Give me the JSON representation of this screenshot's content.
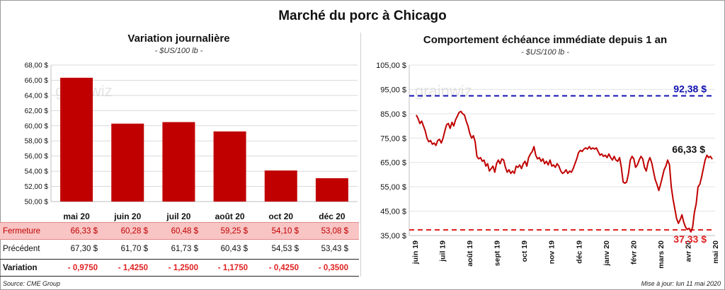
{
  "main_title": "Marché du porc à Chicago",
  "watermark": "grainwiz",
  "left": {
    "title": "Variation  journalière",
    "units": "- $US/100 lb -"
  },
  "right": {
    "title": "Comportement  échéance immédiate depuis 1 an",
    "units": "- $US/100 lb -"
  },
  "table": {
    "row_close_label": "Fermeture",
    "row_prev_label": "Précédent",
    "row_var_label": "Variation",
    "close": [
      "66,33  $",
      "60,28  $",
      "60,48  $",
      "59,25  $",
      "54,10  $",
      "53,08  $"
    ],
    "prev": [
      "67,30  $",
      "61,70  $",
      "61,73  $",
      "60,43  $",
      "54,53  $",
      "53,43  $"
    ],
    "var": [
      "- 0,9750",
      "- 1,4250",
      "- 1,2500",
      "- 1,1750",
      "- 0,4250",
      "- 0,3500"
    ]
  },
  "source": "Source: CME Group",
  "update": "Mise à jour: lun 11 mai 2020",
  "colors": {
    "bar": "#c00000",
    "line": "#c00000",
    "max_line": "#1010b0",
    "min_line": "#e02020",
    "close_bg": "#f9c4c4"
  },
  "chart_data": [
    {
      "type": "bar",
      "title": "Variation  journalière",
      "subtitle": "- $US/100 lb -",
      "categories": [
        "mai 20",
        "juin 20",
        "juil 20",
        "août 20",
        "oct 20",
        "déc 20"
      ],
      "values": [
        66.33,
        60.28,
        60.48,
        59.25,
        54.1,
        53.08
      ],
      "ylim": [
        50,
        68
      ],
      "yticks": [
        "50,00 $",
        "52,00 $",
        "54,00 $",
        "56,00 $",
        "58,00 $",
        "60,00 $",
        "62,00 $",
        "64,00 $",
        "66,00 $",
        "68,00 $"
      ],
      "grid": true,
      "legend": "none"
    },
    {
      "type": "line",
      "title": "Comportement  échéance immédiate depuis 1 an",
      "subtitle": "- $US/100 lb -",
      "x_start": "2019-05-13",
      "x_end": "2020-05-11",
      "xticks": [
        "juin 19",
        "juil 19",
        "août 19",
        "sept 19",
        "oct 19",
        "nov 19",
        "déc 19",
        "janv 20",
        "févr 20",
        "mars 20",
        "avr 20",
        "mai 20"
      ],
      "ylim": [
        35,
        105
      ],
      "yticks": [
        "35,00 $",
        "45,00 $",
        "55,00 $",
        "65,00 $",
        "75,00 $",
        "85,00 $",
        "95,00 $",
        "105,00 $"
      ],
      "grid": true,
      "series": [
        {
          "values": [
            84.5,
            83.0,
            81.0,
            82.0,
            80.0,
            78.0,
            75.0,
            73.5,
            74.0,
            72.5,
            73.0,
            72.0,
            74.0,
            74.5,
            73.0,
            75.0,
            78.0,
            80.5,
            81.0,
            79.0,
            81.5,
            80.0,
            82.5,
            84.0,
            85.5,
            86.0,
            85.0,
            84.5,
            82.0,
            80.0,
            77.0,
            75.0,
            76.0,
            73.5,
            67.5,
            66.5,
            67.0,
            65.5,
            66.0,
            63.5,
            64.5,
            61.5,
            62.5,
            63.5,
            61.0,
            64.5,
            66.0,
            64.5,
            66.5,
            66.0,
            63.0,
            61.0,
            62.0,
            60.5,
            61.5,
            60.5,
            63.5,
            63.0,
            64.0,
            62.5,
            64.5,
            65.5,
            63.5,
            67.0,
            68.5,
            69.5,
            71.5,
            68.0,
            66.5,
            67.0,
            65.5,
            66.5,
            64.5,
            65.5,
            64.0,
            66.0,
            63.5,
            64.0,
            63.0,
            64.5,
            63.5,
            61.5,
            60.5,
            61.0,
            62.0,
            60.5,
            61.5,
            61.0,
            62.5,
            64.5,
            66.5,
            69.0,
            70.0,
            69.5,
            70.5,
            71.0,
            70.5,
            71.5,
            70.5,
            71.0,
            70.5,
            71.0,
            69.5,
            68.0,
            68.5,
            67.5,
            68.0,
            67.0,
            68.5,
            67.0,
            66.0,
            67.5,
            66.0,
            65.5,
            67.0,
            63.0,
            57.0,
            56.5,
            57.0,
            60.5,
            66.0,
            67.5,
            66.5,
            63.0,
            64.0,
            66.0,
            67.5,
            66.5,
            63.0,
            61.5,
            65.0,
            67.0,
            65.0,
            61.5,
            58.0,
            56.0,
            53.5,
            56.0,
            59.0,
            62.0,
            63.5,
            66.0,
            64.0,
            55.0,
            50.0,
            46.0,
            42.0,
            40.0,
            41.5,
            43.5,
            40.5,
            38.5,
            37.5,
            38.0,
            36.5,
            38.5,
            44.5,
            48.0,
            55.0,
            56.0,
            59.0,
            62.5,
            66.0,
            68.0,
            67.0,
            67.5,
            66.33
          ]
        }
      ],
      "reference_lines": [
        {
          "label": "92,38 $",
          "value": 92.38
        },
        {
          "label": "37,33 $",
          "value": 37.33
        }
      ],
      "last_label": "66,33 $",
      "last_value": 66.33,
      "legend": "none"
    }
  ]
}
